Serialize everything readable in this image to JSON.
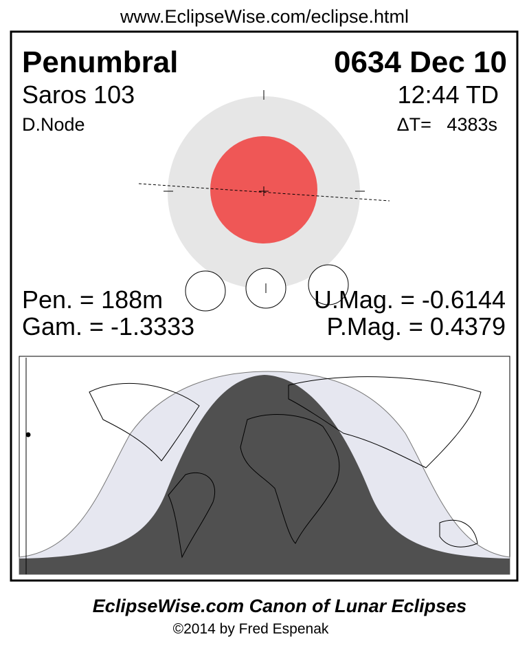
{
  "header": {
    "url": "www.EclipseWise.com/eclipse.html"
  },
  "panel": {
    "type": "Penumbral",
    "date": "0634 Dec 10",
    "saros": "Saros 103",
    "time": "12:44 TD",
    "node": "D.Node",
    "delta_t": "ΔT=   4383s",
    "pen": "Pen. = 188m",
    "gam": "Gam. = -1.3333",
    "umag": "U.Mag. = -0.6144",
    "pmag": "P.Mag. = 0.4379"
  },
  "footer": {
    "title": "EclipseWise.com Canon of Lunar Eclipses",
    "copyright": "©2014 by Fred Espenak"
  }
}
